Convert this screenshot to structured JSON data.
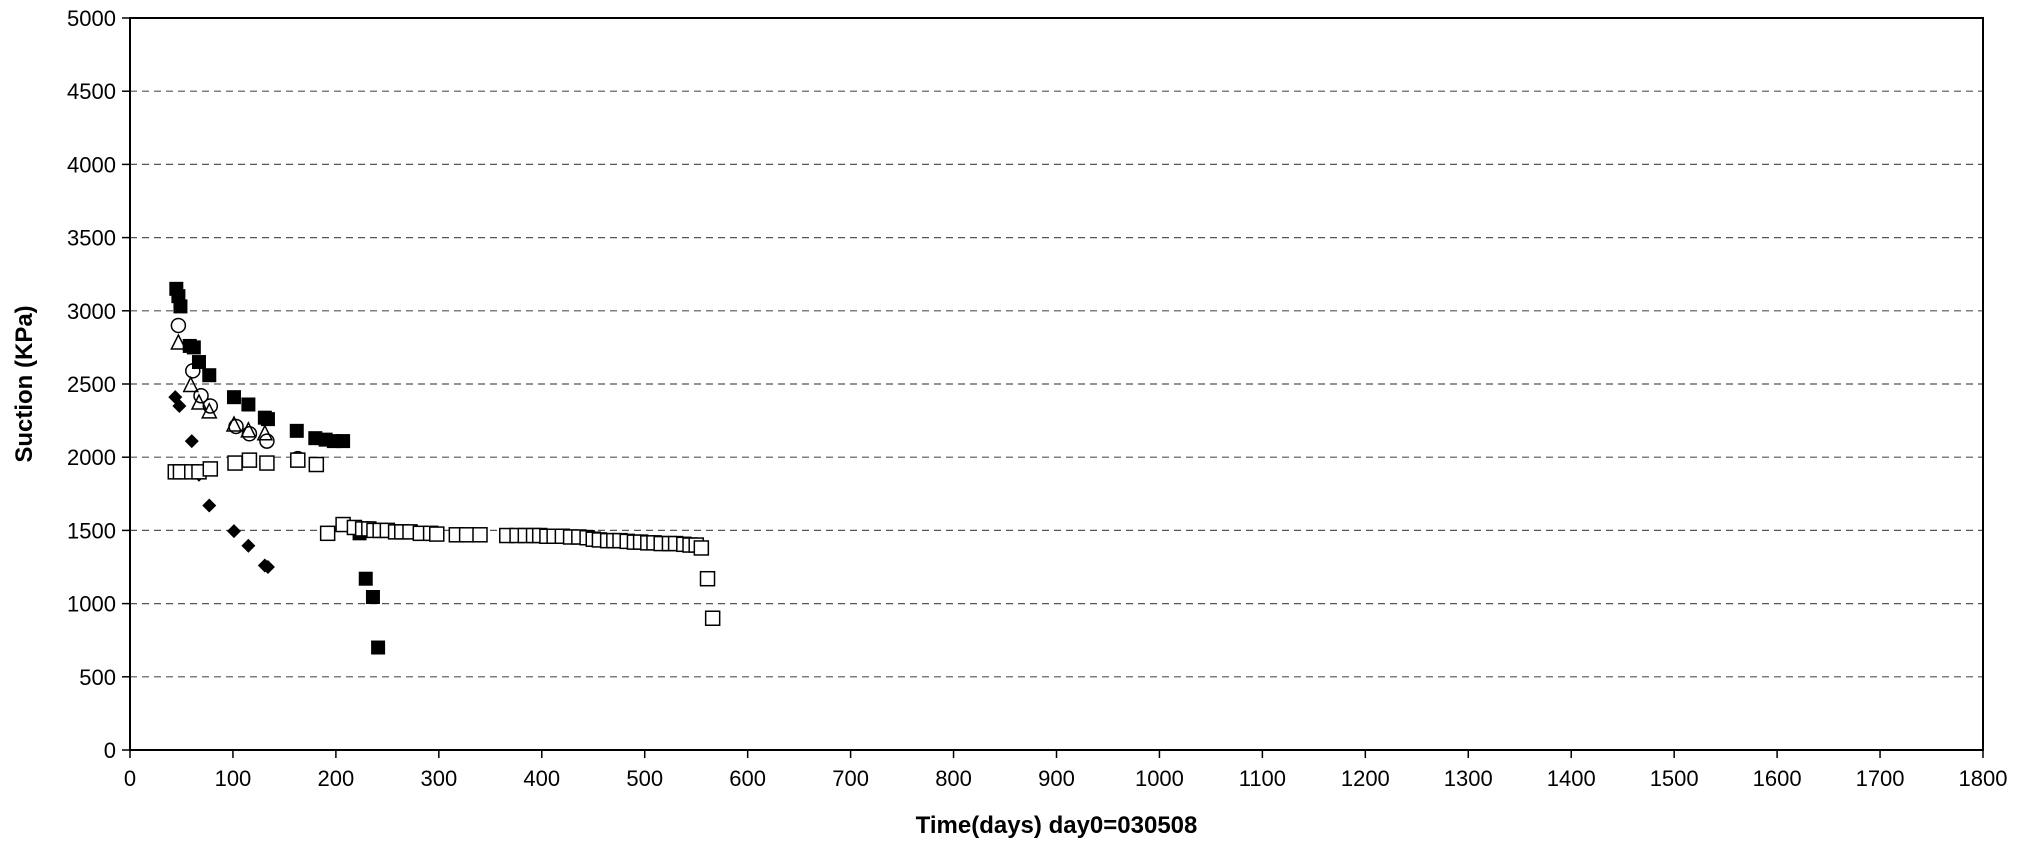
{
  "chart_data": {
    "type": "scatter",
    "title": "",
    "xlabel": "Time(days)  day0=030508",
    "ylabel": "Suction (KPa)",
    "xlim": [
      0,
      1800
    ],
    "ylim": [
      0,
      5000
    ],
    "xticks": [
      0,
      100,
      200,
      300,
      400,
      500,
      600,
      700,
      800,
      900,
      1000,
      1100,
      1200,
      1300,
      1400,
      1500,
      1600,
      1700,
      1800
    ],
    "yticks": [
      0,
      500,
      1000,
      1500,
      2000,
      2500,
      3000,
      3500,
      4000,
      4500,
      5000
    ],
    "grid": "horizontal dashed",
    "legend": "none",
    "series": [
      {
        "marker": "filled-diamond",
        "x": [
          44,
          48,
          60,
          67,
          77,
          101,
          115,
          131,
          134
        ],
        "y": [
          2410,
          2350,
          2110,
          1880,
          1670,
          1495,
          1395,
          1260,
          1250
        ]
      },
      {
        "marker": "filled-square",
        "x": [
          45,
          47,
          49,
          58,
          62,
          67,
          77,
          101,
          115,
          131,
          134,
          162,
          180,
          190,
          198,
          207,
          223,
          229,
          236,
          241
        ],
        "y": [
          3150,
          3100,
          3030,
          2760,
          2750,
          2650,
          2560,
          2410,
          2360,
          2270,
          2260,
          2180,
          2130,
          2120,
          2110,
          2110,
          1480,
          1170,
          1045,
          700
        ]
      },
      {
        "marker": "open-triangle",
        "x": [
          47,
          59,
          67,
          77,
          101,
          115,
          131
        ],
        "y": [
          2780,
          2490,
          2370,
          2310,
          2220,
          2180,
          2160
        ]
      },
      {
        "marker": "open-circle",
        "x": [
          47,
          61,
          69,
          78,
          103,
          116,
          133,
          163
        ],
        "y": [
          2900,
          2590,
          2420,
          2350,
          2210,
          2160,
          2110,
          1990
        ]
      },
      {
        "marker": "open-square",
        "x": [
          44,
          49,
          60,
          67,
          78,
          102,
          116,
          133,
          163,
          181,
          192,
          207,
          218,
          226,
          232,
          237,
          243,
          250,
          258,
          264,
          272,
          282,
          292,
          298,
          317,
          327,
          340,
          366,
          376,
          384,
          392,
          398,
          405,
          412,
          420,
          428,
          436,
          444,
          450,
          456,
          464,
          470,
          476,
          483,
          490,
          496,
          503,
          509,
          516,
          524,
          530,
          538,
          544,
          550,
          555,
          561,
          566
        ],
        "y": [
          1900,
          1900,
          1900,
          1900,
          1920,
          1960,
          1980,
          1960,
          1980,
          1950,
          1480,
          1540,
          1520,
          1510,
          1510,
          1500,
          1500,
          1500,
          1490,
          1490,
          1490,
          1480,
          1480,
          1475,
          1470,
          1470,
          1470,
          1465,
          1465,
          1465,
          1465,
          1465,
          1460,
          1460,
          1460,
          1455,
          1455,
          1450,
          1440,
          1435,
          1430,
          1430,
          1430,
          1425,
          1420,
          1420,
          1415,
          1415,
          1410,
          1410,
          1410,
          1405,
          1400,
          1400,
          1380,
          1170,
          900
        ]
      }
    ]
  }
}
